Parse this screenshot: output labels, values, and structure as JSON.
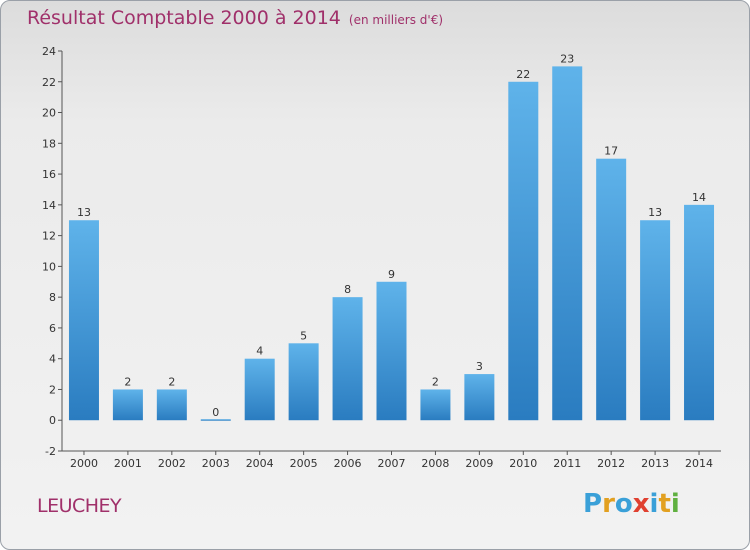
{
  "header": {
    "title": "Résultat Comptable 2000 à 2014",
    "subtitle": "(en milliers d'€)"
  },
  "footer": {
    "commune": "LEUCHEY",
    "logo_letters": [
      "P",
      "r",
      "o",
      "x",
      "i",
      "t",
      "i"
    ],
    "logo_colors": [
      "#3aa0d8",
      "#e2a020",
      "#3aa0d8",
      "#e04030",
      "#3aa0d8",
      "#e2a020",
      "#60b040"
    ]
  },
  "colors": {
    "bar_light": "#5fb3ea",
    "bar_dark": "#2a7cc0",
    "title": "#a0306a"
  },
  "chart_data": {
    "type": "bar",
    "title": "Résultat Comptable 2000 à 2014",
    "subtitle": "(en milliers d'€)",
    "xlabel": "",
    "ylabel": "",
    "categories": [
      "2000",
      "2001",
      "2002",
      "2003",
      "2004",
      "2005",
      "2006",
      "2007",
      "2008",
      "2009",
      "2010",
      "2011",
      "2012",
      "2013",
      "2014"
    ],
    "values": [
      13,
      2,
      2,
      0,
      4,
      5,
      8,
      9,
      2,
      3,
      22,
      23,
      17,
      13,
      14
    ],
    "ylim": [
      -2,
      24
    ],
    "yticks": [
      -2,
      0,
      2,
      4,
      6,
      8,
      10,
      12,
      14,
      16,
      18,
      20,
      22,
      24
    ],
    "grid": false,
    "legend": "none"
  }
}
